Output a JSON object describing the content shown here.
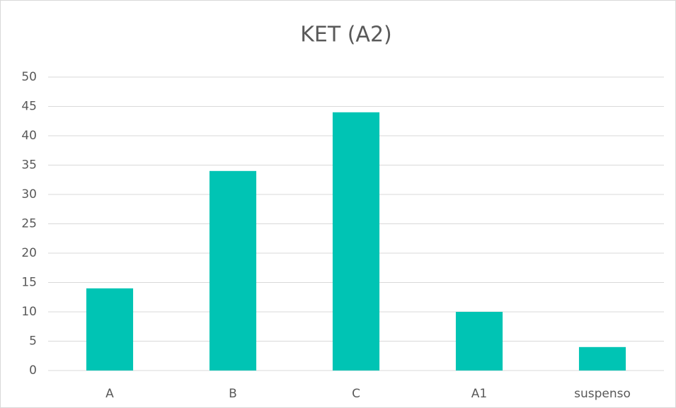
{
  "chart_data": {
    "type": "bar",
    "title": "KET (A2)",
    "categories": [
      "A",
      "B",
      "C",
      "A1",
      "suspenso"
    ],
    "values": [
      14,
      34,
      44,
      10,
      4
    ],
    "color": "#00c4b4",
    "ylim": [
      0,
      50
    ],
    "yticks": [
      0,
      5,
      10,
      15,
      20,
      25,
      30,
      35,
      40,
      45,
      50
    ],
    "grid": true
  }
}
